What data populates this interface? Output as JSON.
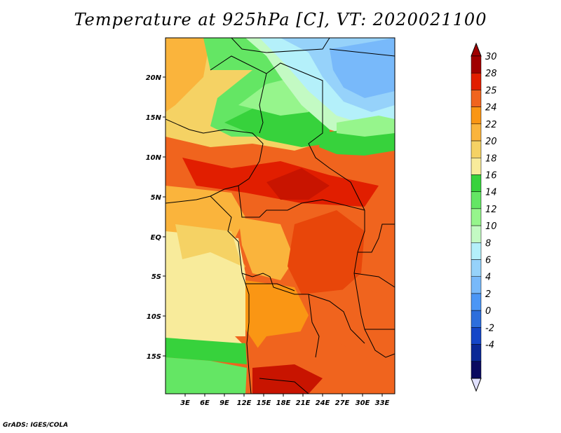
{
  "title": "Temperature at 925hPa [C], VT: 2020021100",
  "credit": "GrADS: IGES/COLA",
  "map": {
    "lat_labels": [
      "20N",
      "15N",
      "10N",
      "5N",
      "EQ",
      "5S",
      "10S",
      "15S"
    ],
    "lon_labels": [
      "3E",
      "6E",
      "9E",
      "12E",
      "15E",
      "18E",
      "21E",
      "24E",
      "27E",
      "30E",
      "33E"
    ]
  },
  "colorbar": {
    "levels": [
      "30",
      "28",
      "25",
      "24",
      "22",
      "20",
      "18",
      "16",
      "14",
      "12",
      "10",
      "8",
      "6",
      "4",
      "2",
      "0",
      "-2",
      "-4"
    ],
    "colors": [
      "#a00000",
      "#e11e00",
      "#f0641e",
      "#fa9614",
      "#fab43c",
      "#f5d264",
      "#f8eb9b",
      "#37d23c",
      "#64e664",
      "#96f58c",
      "#c3fac3",
      "#b4f0fa",
      "#96d2fa",
      "#78b9fa",
      "#4b96f5",
      "#2d6edc",
      "#1446c8",
      "#0a2896",
      "#0a0a60"
    ],
    "end_colors": {
      "top": "#a00000",
      "bottom": "#e1e1ff"
    }
  }
}
